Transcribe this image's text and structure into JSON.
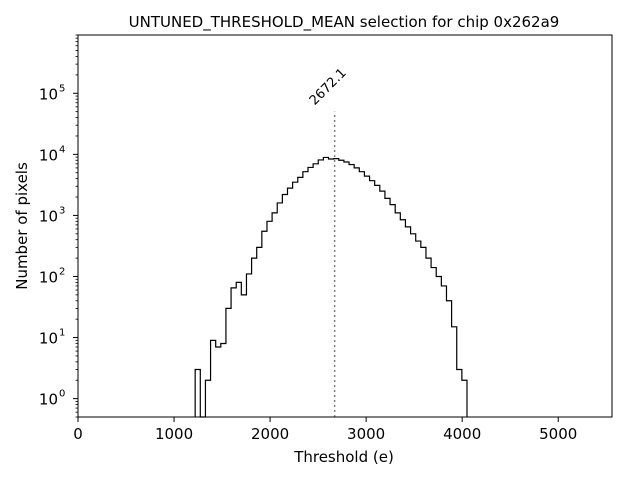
{
  "chart_data": {
    "type": "histogram",
    "title": "UNTUNED_THRESHOLD_MEAN selection for chip 0x262a9",
    "xlabel": "Threshold (e)",
    "ylabel": "Number of pixels",
    "xlim": [
      0,
      5560
    ],
    "ylim": [
      0.5,
      900000
    ],
    "yscale": "log",
    "xticks": [
      0,
      1000,
      2000,
      3000,
      4000,
      5000
    ],
    "xtick_labels": [
      "0",
      "1000",
      "2000",
      "3000",
      "4000",
      "5000"
    ],
    "yticks": [
      1,
      10,
      100,
      1000,
      10000,
      100000
    ],
    "ytick_labels": [
      "10",
      "10",
      "10",
      "10",
      "10",
      "10"
    ],
    "ytick_exponents": [
      "0",
      "1",
      "2",
      "3",
      "4",
      "5"
    ],
    "bin_start": 1220,
    "bin_width": 53.4,
    "counts": [
      3,
      0,
      2,
      9,
      7,
      8,
      30,
      65,
      80,
      50,
      110,
      200,
      300,
      550,
      800,
      1100,
      1600,
      2200,
      2800,
      3500,
      4200,
      5200,
      6100,
      7000,
      8100,
      8900,
      8400,
      8500,
      8000,
      7500,
      6800,
      6000,
      5200,
      4400,
      3700,
      3100,
      2500,
      1900,
      1500,
      1100,
      850,
      650,
      500,
      380,
      300,
      200,
      140,
      100,
      70,
      40,
      15,
      3,
      2
    ],
    "line_color": "#000000",
    "mean_line": {
      "x": 2672.1,
      "label": "2672.1",
      "color": "#808080",
      "y_top": 50000
    }
  }
}
